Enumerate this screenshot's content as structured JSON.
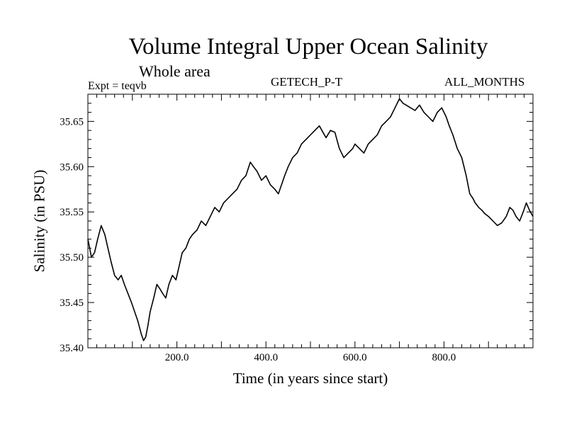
{
  "header": {
    "title": "Volume Integral Upper Ocean Salinity",
    "subtitle": "Whole area",
    "expt_label": "Expt = teqvb",
    "center_label": "GETECH_P-T",
    "right_label": "ALL_MONTHS"
  },
  "chart_data": {
    "type": "line",
    "title": "Volume Integral Upper Ocean Salinity",
    "subtitle": "Whole area",
    "xlabel": "Time (in years since start)",
    "ylabel": "Salinity (in PSU)",
    "xlim": [
      0,
      1000
    ],
    "ylim": [
      35.4,
      35.68
    ],
    "xticks": [
      200,
      400,
      600,
      800
    ],
    "xtick_labels": [
      "200.0",
      "400.0",
      "600.0",
      "800.0"
    ],
    "yticks": [
      35.4,
      35.45,
      35.5,
      35.55,
      35.6,
      35.65
    ],
    "ytick_labels": [
      "35.40",
      "35.45",
      "35.50",
      "35.55",
      "35.60",
      "35.65"
    ],
    "grid": false,
    "series": [
      {
        "name": "Salinity",
        "color": "#000000",
        "x": [
          0,
          8,
          15,
          22,
          30,
          38,
          45,
          52,
          60,
          68,
          75,
          82,
          90,
          98,
          105,
          112,
          120,
          125,
          130,
          135,
          140,
          148,
          155,
          162,
          168,
          175,
          182,
          190,
          198,
          205,
          212,
          220,
          228,
          235,
          245,
          255,
          265,
          275,
          285,
          295,
          305,
          315,
          325,
          335,
          345,
          355,
          365,
          372,
          380,
          390,
          400,
          410,
          420,
          428,
          435,
          442,
          450,
          460,
          470,
          480,
          490,
          500,
          510,
          520,
          528,
          535,
          545,
          555,
          565,
          575,
          585,
          595,
          600,
          610,
          620,
          630,
          640,
          650,
          660,
          670,
          680,
          690,
          700,
          708,
          715,
          725,
          735,
          745,
          755,
          765,
          775,
          785,
          795,
          800,
          805,
          812,
          820,
          830,
          840,
          850,
          858,
          865,
          870,
          878,
          885,
          892,
          900,
          910,
          920,
          930,
          940,
          948,
          955,
          962,
          970,
          978,
          985,
          992,
          1000
        ],
        "values": [
          35.52,
          35.5,
          35.505,
          35.52,
          35.535,
          35.525,
          35.51,
          35.495,
          35.48,
          35.475,
          35.48,
          35.47,
          35.46,
          35.45,
          35.44,
          35.43,
          35.415,
          35.408,
          35.412,
          35.425,
          35.44,
          35.455,
          35.47,
          35.465,
          35.46,
          35.455,
          35.47,
          35.48,
          35.475,
          35.49,
          35.505,
          35.51,
          35.52,
          35.525,
          35.53,
          35.54,
          35.535,
          35.545,
          35.555,
          35.55,
          35.56,
          35.565,
          35.57,
          35.575,
          35.585,
          35.59,
          35.605,
          35.6,
          35.595,
          35.585,
          35.59,
          35.58,
          35.575,
          35.57,
          35.58,
          35.59,
          35.6,
          35.61,
          35.615,
          35.625,
          35.63,
          35.635,
          35.64,
          35.645,
          35.638,
          35.632,
          35.64,
          35.638,
          35.62,
          35.61,
          35.615,
          35.62,
          35.625,
          35.62,
          35.615,
          35.625,
          35.63,
          35.635,
          35.645,
          35.65,
          35.655,
          35.665,
          35.675,
          35.67,
          35.668,
          35.665,
          35.662,
          35.668,
          35.66,
          35.655,
          35.65,
          35.66,
          35.665,
          35.66,
          35.655,
          35.645,
          35.635,
          35.62,
          35.61,
          35.59,
          35.57,
          35.565,
          35.56,
          35.555,
          35.552,
          35.548,
          35.545,
          35.54,
          35.535,
          35.538,
          35.545,
          35.555,
          35.552,
          35.545,
          35.54,
          35.55,
          35.56,
          35.552,
          35.545
        ]
      }
    ]
  }
}
